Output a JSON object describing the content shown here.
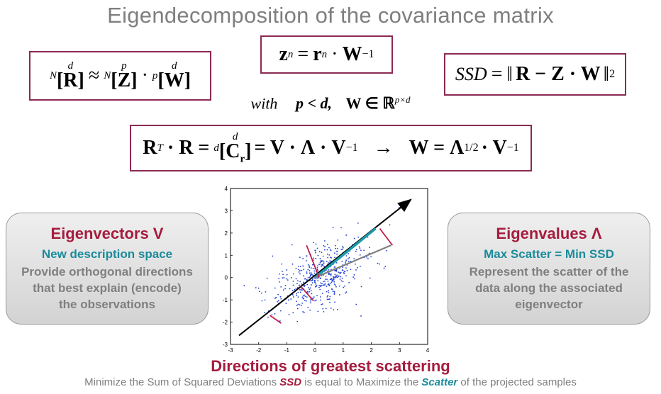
{
  "title": "Eigendecomposition of the covariance matrix",
  "equations": {
    "left": {
      "R": "R",
      "Z": "Z",
      "W": "W",
      "sub_N": "N",
      "sup_d": "d",
      "sub_p": "p",
      "sup_p": "p",
      "approx": "≈",
      "dot": "·"
    },
    "mid": {
      "lhs": "z",
      "sub_n": "n",
      "eq": "=",
      "r": "r",
      "W": "W",
      "inv": "−1"
    },
    "right": {
      "ssd": "SSD",
      "eq": "=",
      "expr": "R − Z · W",
      "sq": "2"
    },
    "with": {
      "word": "with",
      "cond": "p < d,",
      "set": "W ∈ ℝ",
      "setsup": "p×d"
    },
    "main": {
      "RT": "R",
      "T": "T",
      "rest": "· R =",
      "sub_d": "d",
      "sup_d": "d",
      "C": "C",
      "Csub": "r",
      "eig": "= V · Λ · V",
      "inv": "−1",
      "arrow": "→",
      "W": "W = Λ",
      "half": "1/2",
      "Vinv": "· V",
      "inv2": "−1"
    }
  },
  "left_card": {
    "title": "Eigenvectors V",
    "subtitle": "New description space",
    "body": [
      "Provide orthogonal directions",
      "that best explain (encode)",
      "the observations"
    ]
  },
  "right_card": {
    "title": "Eigenvalues Λ",
    "subtitle": "Max Scatter = Min SSD",
    "body": [
      "Represent the scatter of the",
      "data along the associated",
      "eigenvector"
    ]
  },
  "caption": {
    "title": "Directions of greatest scattering",
    "pre": "Minimize the Sum of Squared Deviations ",
    "ssd": "SSD",
    "mid": " is equal to Maximize the ",
    "scatter": "Scatter",
    "post": " of the projected samples"
  },
  "chart_data": {
    "type": "scatter",
    "xlim": [
      -3,
      4
    ],
    "ylim": [
      -3,
      4
    ],
    "x_ticks": [
      "-3",
      "-2",
      "-1",
      "0",
      "1",
      "2",
      "3",
      "4"
    ],
    "y_ticks": [
      "-3",
      "-2",
      "-1",
      "0",
      "1",
      "2",
      "3",
      "4"
    ],
    "colors": {
      "points": "#1f3fd6",
      "axis1": "#000000",
      "axis2": "#808080",
      "projection": "#1b9aa8",
      "deviation": "#c0204a"
    },
    "principal_axis": {
      "start": [
        -2.7,
        -2.6
      ],
      "end": [
        3.4,
        3.5
      ]
    },
    "second_axis": {
      "start": [
        0,
        0
      ],
      "end": [
        2.7,
        1.45
      ]
    },
    "projected_segment": {
      "start": [
        0,
        0
      ],
      "end": [
        2.15,
        2.2
      ]
    },
    "deviations": [
      {
        "from": [
          2.3,
          2.2
        ],
        "to": [
          2.75,
          1.45
        ]
      },
      {
        "from": [
          -1.6,
          -1.7
        ],
        "to": [
          -1.2,
          -2.05
        ]
      },
      {
        "from": [
          -0.5,
          -0.4
        ],
        "to": [
          -0.05,
          -1.05
        ]
      },
      {
        "from": [
          0.15,
          0.0
        ],
        "to": [
          -0.3,
          1.45
        ]
      }
    ]
  }
}
